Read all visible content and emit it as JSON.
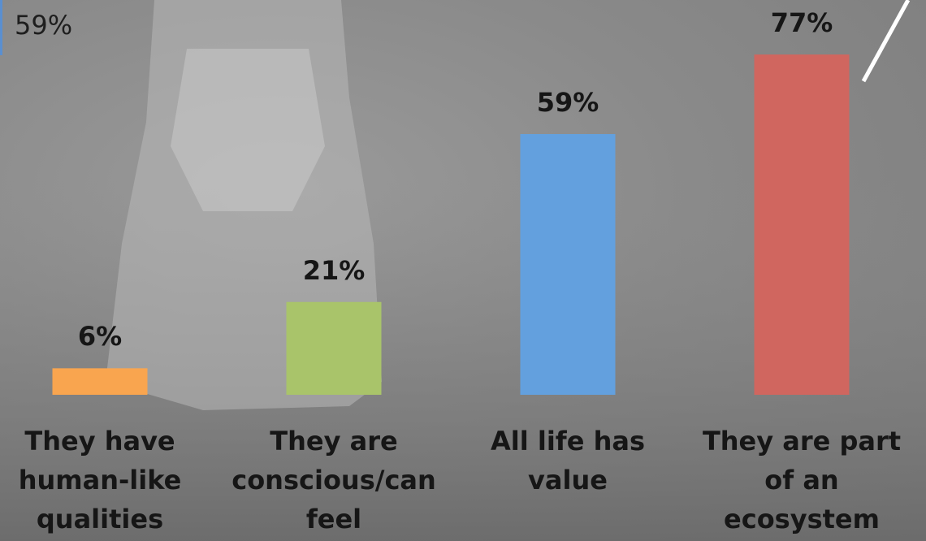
{
  "chart_data": {
    "type": "bar",
    "categories": [
      "They have human-like qualities",
      "They are conscious/can feel",
      "All life has value",
      "They are part of an ecosystem"
    ],
    "values": [
      6,
      21,
      59,
      77
    ],
    "value_labels": [
      "6%",
      "21%",
      "59%",
      "77%"
    ],
    "colors": [
      "#f9a54f",
      "#a9c46a",
      "#63a0de",
      "#d0665f"
    ],
    "annotation": "59%"
  }
}
